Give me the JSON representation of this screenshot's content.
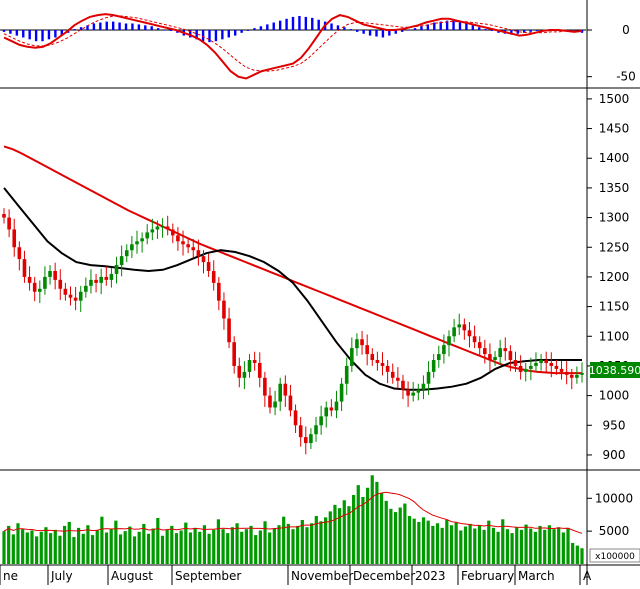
{
  "theme": {
    "up_color": "#008800",
    "down_color": "#e00000",
    "macd_pos_color": "#0000ff",
    "macd_neg_color": "#0000ff",
    "volume_color": "#009900",
    "ma_red": "#e00000",
    "ma_black": "#000000",
    "price_tag_bg": "#008800",
    "price_tag_fg": "#ffffff"
  },
  "chart_data": [
    {
      "type": "bar",
      "panel": "macd",
      "y_ticks": [
        0,
        -50
      ],
      "ylim": [
        -60,
        30
      ],
      "histogram": [
        -2,
        -4,
        -6,
        -8,
        -10,
        -12,
        -12,
        -10,
        -8,
        -6,
        -3,
        1,
        3,
        5,
        7,
        8,
        9,
        9,
        8,
        7,
        7,
        6,
        5,
        4,
        2,
        0,
        -1,
        -3,
        -6,
        -8,
        -10,
        -12,
        -13,
        -12,
        -10,
        -8,
        -6,
        -3,
        -1,
        2,
        4,
        6,
        8,
        10,
        12,
        14,
        15,
        14,
        13,
        11,
        9,
        7,
        5,
        3,
        1,
        -2,
        -4,
        -6,
        -7,
        -8,
        -6,
        -4,
        -2,
        0,
        2,
        4,
        6,
        8,
        9,
        10,
        11,
        9,
        7,
        5,
        3,
        1,
        -1,
        -3,
        -4,
        -5,
        -4,
        -3,
        -2,
        -1,
        0,
        1,
        0,
        -1,
        -2,
        -2,
        -3
      ],
      "macd_line": [
        -8,
        -12,
        -16,
        -18,
        -19,
        -18,
        -14,
        -8,
        -2,
        5,
        10,
        14,
        16,
        17,
        16,
        14,
        12,
        10,
        8,
        6,
        4,
        2,
        0,
        -3,
        -6,
        -10,
        -16,
        -24,
        -34,
        -44,
        -50,
        -52,
        -48,
        -44,
        -42,
        -40,
        -38,
        -36,
        -30,
        -20,
        -8,
        4,
        12,
        16,
        14,
        10,
        6,
        4,
        2,
        0,
        0,
        1,
        3,
        5,
        8,
        10,
        12,
        12,
        10,
        8,
        6,
        4,
        2,
        0,
        -2,
        -4,
        -6,
        -5,
        -3,
        -1,
        0,
        0,
        -1,
        -2,
        -1
      ],
      "signal_line": [
        -4,
        -8,
        -12,
        -15,
        -17,
        -17,
        -16,
        -13,
        -9,
        -4,
        1,
        6,
        10,
        13,
        15,
        15,
        14,
        13,
        11,
        9,
        7,
        5,
        3,
        1,
        -2,
        -5,
        -9,
        -14,
        -20,
        -27,
        -34,
        -40,
        -43,
        -44,
        -44,
        -43,
        -41,
        -39,
        -36,
        -30,
        -22,
        -14,
        -6,
        1,
        6,
        8,
        8,
        7,
        6,
        5,
        4,
        3,
        3,
        4,
        5,
        7,
        8,
        9,
        9,
        9,
        8,
        7,
        6,
        4,
        2,
        0,
        -2,
        -3,
        -3,
        -3,
        -2,
        -2,
        -1,
        -1,
        -1
      ]
    },
    {
      "type": "candlestick",
      "panel": "price",
      "y_ticks": [
        1500,
        1450,
        1400,
        1350,
        1300,
        1250,
        1200,
        1150,
        1100,
        1050,
        1000,
        950,
        900
      ],
      "ylim": [
        878,
        1515
      ],
      "last_price": "1038.590",
      "x_labels": [
        "ne",
        "July",
        "August",
        "September",
        "November",
        "December",
        "2023",
        "February",
        "March",
        "A"
      ],
      "closes": [
        1300,
        1280,
        1250,
        1230,
        1200,
        1190,
        1175,
        1180,
        1200,
        1210,
        1195,
        1180,
        1170,
        1165,
        1160,
        1175,
        1185,
        1195,
        1190,
        1200,
        1195,
        1205,
        1220,
        1235,
        1245,
        1255,
        1260,
        1265,
        1275,
        1280,
        1285,
        1285,
        1280,
        1270,
        1260,
        1255,
        1250,
        1245,
        1235,
        1225,
        1210,
        1190,
        1160,
        1130,
        1090,
        1050,
        1030,
        1040,
        1060,
        1055,
        1030,
        1000,
        980,
        990,
        1020,
        1000,
        975,
        950,
        930,
        920,
        935,
        950,
        965,
        980,
        975,
        990,
        1020,
        1050,
        1080,
        1095,
        1085,
        1070,
        1060,
        1055,
        1050,
        1040,
        1030,
        1025,
        1010,
        1000,
        1005,
        1010,
        1020,
        1040,
        1060,
        1070,
        1085,
        1100,
        1115,
        1120,
        1110,
        1100,
        1090,
        1080,
        1070,
        1060,
        1065,
        1080,
        1075,
        1060,
        1050,
        1040,
        1045,
        1050,
        1055,
        1060,
        1055,
        1050,
        1045,
        1040,
        1035,
        1030,
        1035,
        1038
      ],
      "ma_red": [
        1420,
        1415,
        1408,
        1400,
        1392,
        1384,
        1376,
        1368,
        1360,
        1352,
        1344,
        1336,
        1328,
        1320,
        1312,
        1305,
        1298,
        1291,
        1284,
        1277,
        1270,
        1263,
        1256,
        1250,
        1244,
        1238,
        1232,
        1226,
        1220,
        1214,
        1208,
        1202,
        1196,
        1190,
        1184,
        1178,
        1172,
        1166,
        1160,
        1154,
        1148,
        1142,
        1136,
        1130,
        1124,
        1118,
        1112,
        1106,
        1100,
        1094,
        1088,
        1082,
        1076,
        1070,
        1064,
        1058,
        1052,
        1048,
        1045,
        1042,
        1040,
        1039,
        1038,
        1038,
        1038,
        1038
      ],
      "ma_black": [
        1350,
        1320,
        1290,
        1260,
        1240,
        1225,
        1220,
        1218,
        1215,
        1212,
        1210,
        1212,
        1220,
        1230,
        1240,
        1245,
        1242,
        1235,
        1225,
        1210,
        1190,
        1160,
        1125,
        1090,
        1060,
        1035,
        1020,
        1012,
        1010,
        1010,
        1012,
        1015,
        1020,
        1030,
        1045,
        1055,
        1058,
        1060,
        1060,
        1060,
        1060
      ]
    },
    {
      "type": "bar",
      "panel": "volume",
      "y_ticks": [
        10000,
        5000
      ],
      "ylim": [
        0,
        14000
      ],
      "unit_label": "x100000",
      "values": [
        5000,
        5800,
        4500,
        6200,
        5300,
        4800,
        5100,
        4200,
        4900,
        5600,
        4700,
        5200,
        4300,
        5800,
        6400,
        4100,
        5500,
        4600,
        5900,
        4400,
        5100,
        7200,
        4800,
        5300,
        6600,
        4500,
        5000,
        5700,
        4200,
        4900,
        6100,
        4600,
        5400,
        7000,
        4300,
        5200,
        5800,
        4700,
        5100,
        6300,
        4800,
        5500,
        4900,
        5900,
        4600,
        5200,
        6800,
        5300,
        4700,
        5600,
        6200,
        4900,
        5300,
        5800,
        4400,
        5100,
        6500,
        4800,
        5400,
        5900,
        7200,
        6100,
        5300,
        5800,
        6700,
        5600,
        6200,
        7300,
        6500,
        7100,
        8000,
        9000,
        8500,
        9700,
        8800,
        10500,
        12000,
        10200,
        11600,
        13500,
        12500,
        10800,
        9600,
        8400,
        7900,
        8600,
        9200,
        7300,
        6900,
        6400,
        7100,
        6600,
        5800,
        6200,
        5500,
        6700,
        5900,
        6300,
        5100,
        5700,
        6100,
        5400,
        5900,
        5200,
        6600,
        5500,
        4900,
        6800,
        5300,
        4700,
        5600,
        5200,
        6000,
        5400,
        4900,
        5800,
        5200,
        5900,
        5300,
        5600,
        4800,
        5500,
        3200,
        2800,
        2400
      ]
    }
  ]
}
